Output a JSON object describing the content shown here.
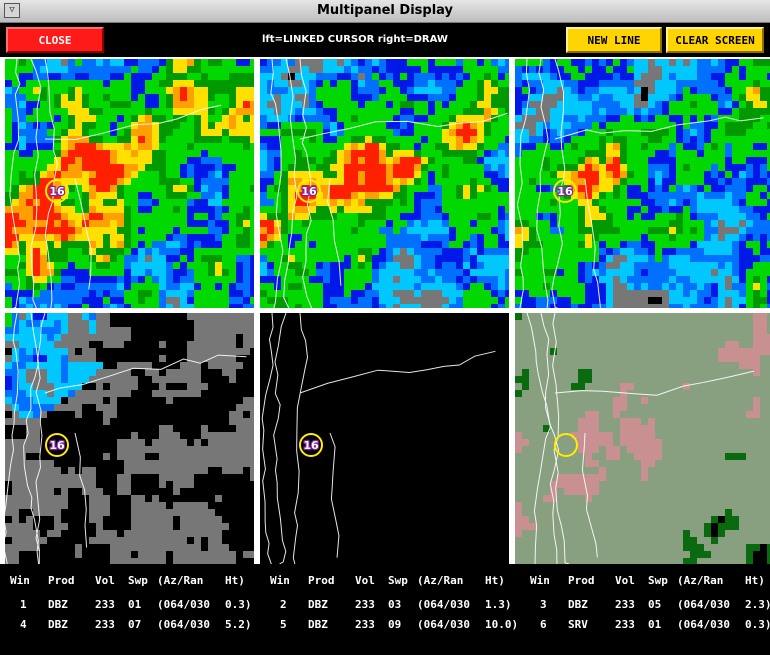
{
  "window": {
    "title": "Multipanel Display",
    "menu_glyph": "▽"
  },
  "toolbar": {
    "close_label": "CLOSE",
    "hint": "lft=LINKED CURSOR  right=DRAW",
    "new_line_label": "NEW LINE",
    "clear_screen_label": "CLEAR SCREEN"
  },
  "colors": {
    "close_button": "#ff1a1a",
    "action_buttons": "#ffd400",
    "cursor_ring": "#ffee00",
    "panel_separator": "#ffffff"
  },
  "panels": [
    {
      "win": "1",
      "product": "DBZ",
      "marker_label": "16"
    },
    {
      "win": "2",
      "product": "DBZ",
      "marker_label": "16"
    },
    {
      "win": "3",
      "product": "DBZ",
      "marker_label": "16"
    },
    {
      "win": "4",
      "product": "DBZ",
      "marker_label": "16"
    },
    {
      "win": "5",
      "product": "DBZ",
      "marker_label": "16"
    },
    {
      "win": "6",
      "product": "SRV",
      "marker_label": ""
    }
  ],
  "info": {
    "headers": [
      "Win",
      "Prod",
      "Vol",
      "Swp",
      "(Az/Ran",
      "Ht)"
    ],
    "rows": [
      [
        {
          "win": "1",
          "prod": "DBZ",
          "vol": "233",
          "swp": "01",
          "azran": "(064/030",
          "ht": "0.3)"
        },
        {
          "win": "2",
          "prod": "DBZ",
          "vol": "233",
          "swp": "03",
          "azran": "(064/030",
          "ht": "1.3)"
        },
        {
          "win": "3",
          "prod": "DBZ",
          "vol": "233",
          "swp": "05",
          "azran": "(064/030",
          "ht": "2.3)"
        }
      ],
      [
        {
          "win": "4",
          "prod": "DBZ",
          "vol": "233",
          "swp": "07",
          "azran": "(064/030",
          "ht": "5.2)"
        },
        {
          "win": "5",
          "prod": "DBZ",
          "vol": "233",
          "swp": "09",
          "azran": "(064/030",
          "ht": "10.0)"
        },
        {
          "win": "6",
          "prod": "SRV",
          "vol": "233",
          "swp": "01",
          "azran": "(064/030",
          "ht": "0.3)"
        }
      ]
    ]
  }
}
